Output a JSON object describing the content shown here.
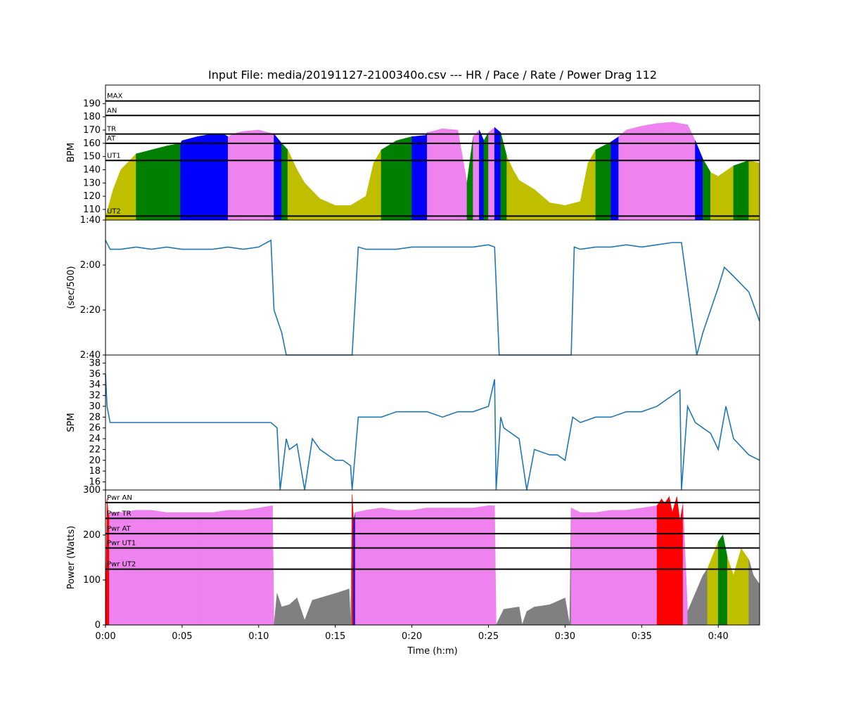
{
  "title": "Input File:  media/20191127-2100340o.csv --- HR / Pace / Rate / Power Drag 112",
  "chart_data": [
    {
      "type": "area",
      "panel": "hr",
      "ylabel": "BPM",
      "ylim": [
        102,
        204
      ],
      "yticks": [
        110,
        120,
        130,
        140,
        150,
        160,
        170,
        180,
        190
      ],
      "zone_lines": [
        {
          "label": "MAX",
          "value": 192
        },
        {
          "label": "AN",
          "value": 181
        },
        {
          "label": "TR",
          "value": 167
        },
        {
          "label": "AT",
          "value": 160
        },
        {
          "label": "UT1",
          "value": 147
        },
        {
          "label": "UT2",
          "value": 105
        }
      ],
      "x_minutes": [
        0.0,
        0.5,
        1.0,
        2.0,
        3.0,
        4.0,
        4.9,
        5.0,
        6.0,
        7.0,
        7.7,
        8.0,
        8.6,
        9.0,
        10.0,
        11.0,
        11.5,
        11.9,
        12.5,
        13.0,
        14.0,
        15.0,
        16.0,
        17.0,
        17.5,
        18.0,
        19.0,
        20.0,
        20.9,
        21.0,
        22.0,
        23.0,
        23.6,
        24.0,
        24.4,
        24.7,
        25.0,
        25.4,
        25.8,
        26.2,
        26.6,
        27.0,
        28.0,
        29.0,
        30.0,
        31.0,
        31.5,
        32.0,
        33.0,
        33.5,
        34.0,
        35.0,
        36.0,
        37.0,
        38.0,
        38.5,
        39.0,
        39.5,
        40.0,
        41.0,
        42.0,
        42.7
      ],
      "values": [
        104,
        125,
        140,
        152,
        155,
        158,
        160,
        162,
        165,
        167,
        167,
        165,
        168,
        169,
        170,
        167,
        160,
        155,
        140,
        130,
        118,
        113,
        113,
        120,
        145,
        155,
        162,
        165,
        166,
        168,
        171,
        170,
        130,
        165,
        170,
        162,
        168,
        172,
        168,
        150,
        140,
        132,
        125,
        115,
        113,
        116,
        145,
        155,
        161,
        165,
        170,
        173,
        175,
        176,
        174,
        162,
        148,
        138,
        135,
        143,
        147,
        145
      ],
      "zones": [
        0,
        0,
        0,
        1,
        1,
        1,
        2,
        2,
        2,
        2,
        2,
        4,
        4,
        4,
        4,
        2,
        1,
        0,
        0,
        0,
        0,
        0,
        0,
        0,
        0,
        1,
        1,
        2,
        2,
        4,
        4,
        4,
        1,
        4,
        2,
        1,
        4,
        2,
        1,
        0,
        0,
        0,
        0,
        0,
        0,
        0,
        0,
        1,
        2,
        4,
        4,
        4,
        4,
        4,
        4,
        2,
        1,
        0,
        0,
        1,
        0,
        0
      ],
      "zone_colors": [
        "#bfbf00",
        "#008000",
        "#0000ff",
        "#ee82ee",
        "#ee82ee"
      ]
    },
    {
      "type": "line",
      "panel": "pace",
      "ylabel": "(sec/500)",
      "yticks_seconds": [
        100,
        120,
        140,
        160
      ],
      "ytick_labels": [
        "1:40",
        "2:00",
        "2:20",
        "2:40"
      ],
      "ylim_seconds": [
        160,
        100
      ],
      "series_color": "#1f77b4",
      "x_minutes": [
        0.0,
        0.3,
        1.0,
        2.0,
        3.0,
        4.0,
        5.0,
        6.0,
        7.0,
        8.0,
        9.0,
        10.0,
        10.8,
        11.0,
        11.5,
        11.8,
        16.1,
        16.5,
        17.0,
        18.0,
        19.0,
        20.0,
        21.0,
        22.0,
        23.0,
        24.0,
        25.0,
        25.4,
        25.7,
        30.4,
        30.6,
        31.0,
        32.0,
        33.0,
        34.0,
        35.0,
        36.0,
        37.0,
        37.6,
        38.6,
        39.0,
        39.5,
        40.0,
        40.4,
        41.0,
        42.0,
        42.7
      ],
      "values_seconds": [
        109,
        113,
        113,
        112,
        113,
        112,
        113,
        113,
        113,
        112,
        113,
        112,
        109,
        140,
        150,
        160,
        160,
        112,
        113,
        113,
        113,
        112,
        112,
        112,
        112,
        112,
        111,
        112,
        160,
        160,
        112,
        113,
        112,
        112,
        111,
        112,
        111,
        110,
        110,
        160,
        150,
        140,
        130,
        121,
        125,
        132,
        145
      ]
    },
    {
      "type": "line",
      "panel": "rate",
      "ylabel": "SPM",
      "ylim": [
        14.5,
        39.5
      ],
      "yticks": [
        16,
        18,
        20,
        22,
        24,
        26,
        28,
        30,
        32,
        34,
        36,
        38
      ],
      "series_color": "#1f77b4",
      "x_minutes": [
        0.0,
        0.1,
        0.3,
        1.0,
        2.0,
        3.0,
        4.0,
        5.0,
        6.0,
        7.0,
        8.0,
        9.0,
        10.0,
        10.8,
        11.2,
        11.4,
        11.8,
        12.0,
        12.5,
        13.0,
        13.5,
        14.0,
        14.5,
        15.0,
        15.5,
        16.0,
        16.1,
        16.5,
        17.0,
        18.0,
        19.0,
        20.0,
        21.0,
        22.0,
        23.0,
        24.0,
        25.0,
        25.4,
        25.5,
        25.8,
        26.0,
        27.0,
        27.5,
        28.0,
        29.0,
        29.5,
        30.0,
        30.5,
        31.0,
        32.0,
        33.0,
        34.0,
        35.0,
        36.0,
        36.5,
        37.0,
        37.5,
        37.6,
        38.0,
        38.5,
        39.0,
        39.5,
        40.0,
        40.5,
        41.0,
        42.0,
        42.7
      ],
      "values": [
        36,
        30,
        27,
        27,
        27,
        27,
        27,
        27,
        27,
        27,
        27,
        27,
        27,
        27,
        26,
        14,
        24,
        22,
        23,
        14,
        24,
        22,
        21,
        20,
        20,
        19,
        14,
        28,
        28,
        28,
        29,
        29,
        29,
        28,
        29,
        29,
        30,
        35,
        14,
        28,
        26,
        24,
        14,
        22,
        21,
        21,
        20,
        28,
        27,
        28,
        28,
        29,
        29,
        30,
        31,
        32,
        33,
        14,
        30,
        27,
        26,
        25,
        22,
        30,
        24,
        21,
        20
      ]
    },
    {
      "type": "area",
      "panel": "power",
      "ylabel": "Power (Watts)",
      "xlabel": "Time (h:m)",
      "ylim": [
        0,
        300
      ],
      "yticks": [
        0,
        100,
        200,
        300
      ],
      "xlim_minutes": [
        0,
        42.7
      ],
      "xticks_minutes": [
        0,
        5,
        10,
        15,
        20,
        25,
        30,
        35,
        40
      ],
      "xtick_labels": [
        "0:00",
        "0:05",
        "0:10",
        "0:15",
        "0:20",
        "0:25",
        "0:30",
        "0:35",
        "0:40"
      ],
      "zone_lines": [
        {
          "label": "Pwr AN",
          "value": 272
        },
        {
          "label": "Pwr TR",
          "value": 237
        },
        {
          "label": "Pwr AT",
          "value": 203
        },
        {
          "label": "Pwr UT1",
          "value": 171
        },
        {
          "label": "Pwr UT2",
          "value": 124
        }
      ],
      "x_minutes": [
        0.0,
        0.1,
        0.2,
        0.25,
        1.0,
        2.0,
        3.0,
        4.0,
        5.0,
        6.0,
        7.0,
        8.0,
        9.0,
        10.0,
        10.9,
        11.0,
        11.2,
        11.5,
        12.0,
        12.5,
        13.0,
        13.5,
        14.0,
        15.0,
        15.9,
        16.0,
        16.1,
        16.2,
        16.3,
        17.0,
        18.0,
        19.0,
        20.0,
        21.0,
        22.0,
        23.0,
        24.0,
        25.0,
        25.4,
        25.5,
        26.0,
        27.0,
        27.2,
        27.5,
        28.0,
        29.0,
        30.0,
        30.3,
        30.4,
        31.0,
        32.0,
        33.0,
        34.0,
        35.0,
        36.0,
        36.3,
        36.5,
        36.8,
        37.0,
        37.3,
        37.5,
        37.7,
        38.0,
        38.5,
        39.0,
        39.3,
        40.0,
        40.3,
        40.6,
        41.0,
        41.5,
        42.0,
        42.3,
        42.7
      ],
      "values": [
        0,
        280,
        240,
        250,
        250,
        255,
        255,
        250,
        250,
        250,
        250,
        255,
        255,
        260,
        265,
        0,
        70,
        40,
        45,
        60,
        10,
        55,
        60,
        70,
        80,
        0,
        290,
        230,
        250,
        255,
        260,
        255,
        255,
        260,
        260,
        260,
        260,
        265,
        265,
        0,
        35,
        40,
        0,
        30,
        40,
        45,
        60,
        0,
        260,
        250,
        250,
        255,
        255,
        260,
        265,
        280,
        270,
        285,
        250,
        285,
        230,
        270,
        30,
        70,
        110,
        125,
        185,
        200,
        150,
        110,
        170,
        145,
        110,
        90
      ],
      "zones": [
        0,
        0,
        0,
        3,
        3,
        3,
        3,
        3,
        3,
        3,
        3,
        3,
        3,
        3,
        3,
        5,
        5,
        5,
        5,
        5,
        5,
        5,
        5,
        5,
        5,
        5,
        0,
        2,
        3,
        3,
        3,
        3,
        3,
        3,
        3,
        3,
        3,
        3,
        3,
        5,
        5,
        5,
        5,
        5,
        5,
        5,
        5,
        5,
        3,
        3,
        3,
        3,
        3,
        3,
        0,
        0,
        0,
        0,
        0,
        0,
        0,
        3,
        5,
        5,
        5,
        4,
        1,
        1,
        4,
        4,
        4,
        5,
        5,
        5
      ],
      "zone_colors": [
        "#ff0000",
        "#008000",
        "#0000ff",
        "#ee82ee",
        "#bfbf00",
        "#808080"
      ]
    }
  ]
}
